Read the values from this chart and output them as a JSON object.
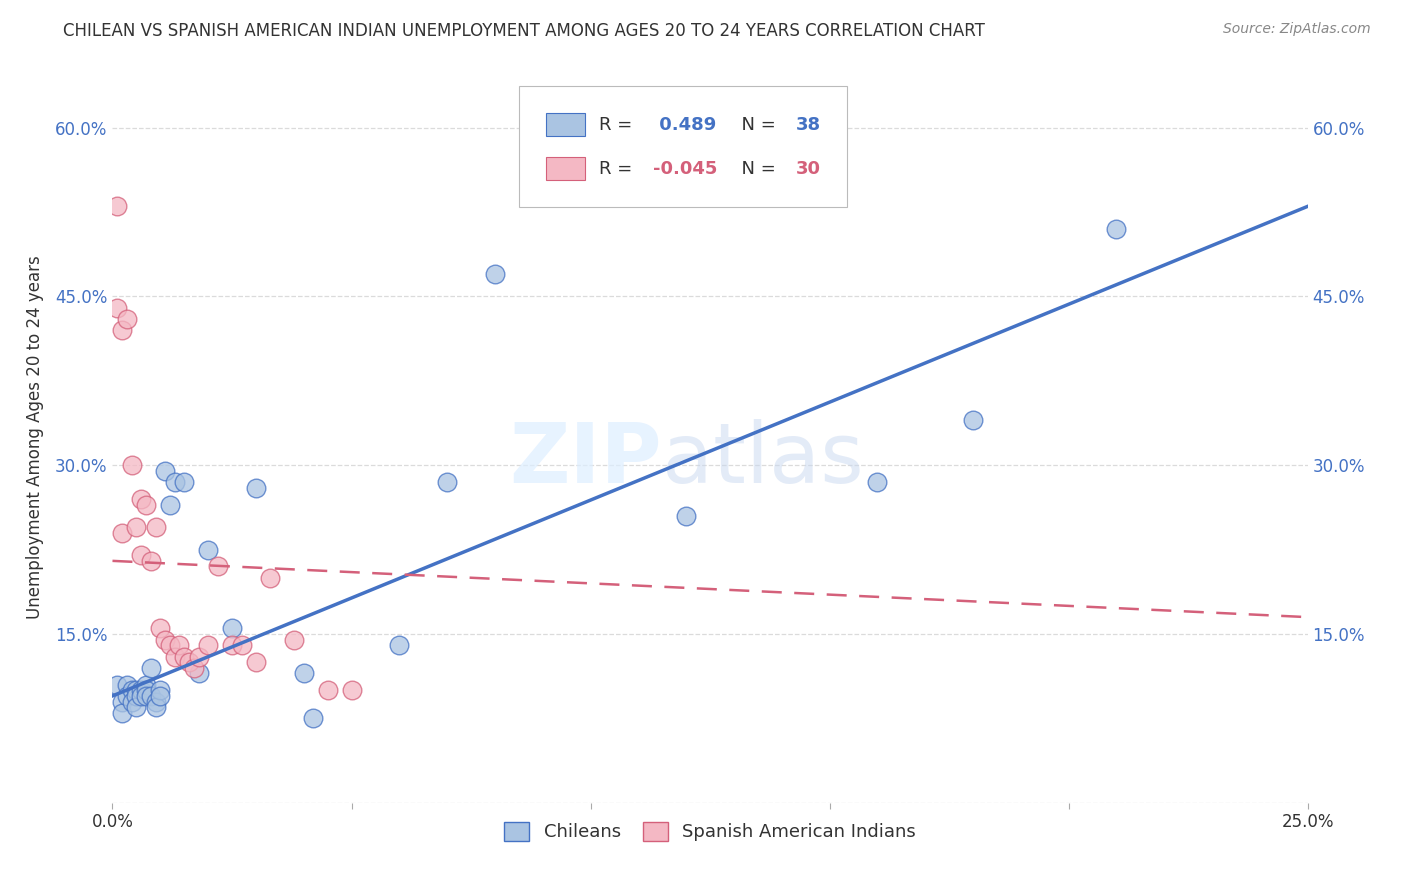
{
  "title": "CHILEAN VS SPANISH AMERICAN INDIAN UNEMPLOYMENT AMONG AGES 20 TO 24 YEARS CORRELATION CHART",
  "source": "Source: ZipAtlas.com",
  "ylabel": "Unemployment Among Ages 20 to 24 years",
  "xlim": [
    0.0,
    0.25
  ],
  "ylim": [
    0.0,
    0.65
  ],
  "xticks": [
    0.0,
    0.05,
    0.1,
    0.15,
    0.2,
    0.25
  ],
  "yticks": [
    0.0,
    0.15,
    0.3,
    0.45,
    0.6
  ],
  "xtick_labels": [
    "0.0%",
    "",
    "",
    "",
    "",
    "25.0%"
  ],
  "ytick_labels": [
    "",
    "15.0%",
    "30.0%",
    "45.0%",
    "60.0%"
  ],
  "chilean_R": 0.489,
  "chilean_N": 38,
  "spanish_R": -0.045,
  "spanish_N": 30,
  "chilean_color": "#aac4e2",
  "chilean_line_color": "#4472c4",
  "spanish_color": "#f4b8c4",
  "spanish_line_color": "#d4607a",
  "background_color": "#ffffff",
  "grid_color": "#cccccc",
  "watermark_zip": "ZIP",
  "watermark_atlas": "atlas",
  "legend_R1_color": "#4472c4",
  "legend_R2_color": "#d4607a",
  "chilean_x": [
    0.001,
    0.002,
    0.002,
    0.003,
    0.003,
    0.004,
    0.004,
    0.005,
    0.005,
    0.005,
    0.006,
    0.006,
    0.007,
    0.007,
    0.007,
    0.008,
    0.008,
    0.009,
    0.009,
    0.01,
    0.01,
    0.011,
    0.012,
    0.013,
    0.015,
    0.018,
    0.02,
    0.025,
    0.03,
    0.04,
    0.042,
    0.06,
    0.07,
    0.08,
    0.12,
    0.16,
    0.18,
    0.21
  ],
  "chilean_y": [
    0.105,
    0.09,
    0.08,
    0.105,
    0.095,
    0.1,
    0.09,
    0.1,
    0.095,
    0.085,
    0.1,
    0.095,
    0.105,
    0.1,
    0.095,
    0.12,
    0.095,
    0.09,
    0.085,
    0.1,
    0.095,
    0.295,
    0.265,
    0.285,
    0.285,
    0.115,
    0.225,
    0.155,
    0.28,
    0.115,
    0.075,
    0.14,
    0.285,
    0.47,
    0.255,
    0.285,
    0.34,
    0.51
  ],
  "spanish_x": [
    0.001,
    0.001,
    0.002,
    0.002,
    0.003,
    0.004,
    0.005,
    0.006,
    0.006,
    0.007,
    0.008,
    0.009,
    0.01,
    0.011,
    0.012,
    0.013,
    0.014,
    0.015,
    0.016,
    0.017,
    0.018,
    0.02,
    0.022,
    0.025,
    0.027,
    0.03,
    0.033,
    0.038,
    0.045,
    0.05
  ],
  "spanish_y": [
    0.53,
    0.44,
    0.42,
    0.24,
    0.43,
    0.3,
    0.245,
    0.27,
    0.22,
    0.265,
    0.215,
    0.245,
    0.155,
    0.145,
    0.14,
    0.13,
    0.14,
    0.13,
    0.125,
    0.12,
    0.13,
    0.14,
    0.21,
    0.14,
    0.14,
    0.125,
    0.2,
    0.145,
    0.1,
    0.1
  ],
  "line_chilean_x0": 0.0,
  "line_chilean_y0": 0.095,
  "line_chilean_x1": 0.25,
  "line_chilean_y1": 0.53,
  "line_spanish_x0": 0.0,
  "line_spanish_y0": 0.215,
  "line_spanish_x1": 0.25,
  "line_spanish_y1": 0.165
}
